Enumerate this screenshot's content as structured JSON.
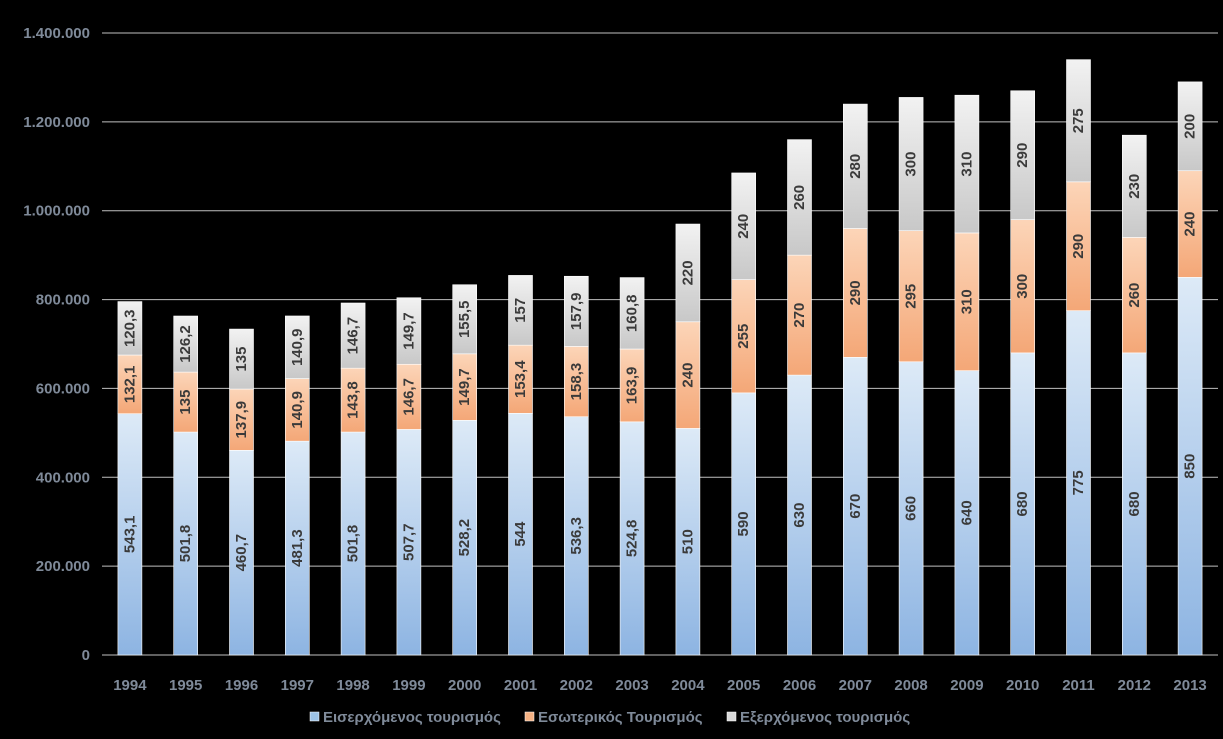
{
  "chart_data": {
    "type": "bar",
    "stacked": true,
    "categories": [
      "1994",
      "1995",
      "1996",
      "1997",
      "1998",
      "1999",
      "2000",
      "2001",
      "2002",
      "2003",
      "2004",
      "2005",
      "2006",
      "2007",
      "2008",
      "2009",
      "2010",
      "2011",
      "2012",
      "2013"
    ],
    "ylim": [
      0,
      1400000
    ],
    "yticks": [
      0,
      200000,
      400000,
      600000,
      800000,
      1000000,
      1200000,
      1400000
    ],
    "ytick_labels": [
      "0",
      "200.000",
      "400.000",
      "600.000",
      "800.000",
      "1.000.000",
      "1.200.000",
      "1.400.000"
    ],
    "grid": true,
    "legend_position": "bottom",
    "value_scale": 1000,
    "series": [
      {
        "name": "Εισερχόμενος τουρισμός",
        "color": "#9dc3e6",
        "values": [
          543.1,
          501.8,
          460.7,
          481.3,
          501.8,
          507.7,
          528.2,
          544,
          536.3,
          524.8,
          510,
          590,
          630,
          670,
          660,
          640,
          680,
          775,
          680,
          850
        ],
        "labels": [
          "543,1",
          "501,8",
          "460,7",
          "481,3",
          "501,8",
          "507,7",
          "528,2",
          "544",
          "536,3",
          "524,8",
          "510",
          "590",
          "630",
          "670",
          "660",
          "640",
          "680",
          "775",
          "680",
          "850"
        ]
      },
      {
        "name": "Εσωτερικός Τουρισμός",
        "color": "#f4b183",
        "values": [
          132.1,
          135,
          137.9,
          140.9,
          143.8,
          146.7,
          149.7,
          153.4,
          158.3,
          163.9,
          240,
          255,
          270,
          290,
          295,
          310,
          300,
          290,
          260,
          240
        ],
        "labels": [
          "132,1",
          "135",
          "137,9",
          "140,9",
          "143,8",
          "146,7",
          "149,7",
          "153,4",
          "158,3",
          "163,9",
          "240",
          "255",
          "270",
          "290",
          "295",
          "310",
          "300",
          "290",
          "260",
          "240"
        ]
      },
      {
        "name": "Εξερχόμενος τουρισμός",
        "color": "#d9d9d9",
        "values": [
          120.3,
          126.2,
          135,
          140.9,
          146.7,
          149.7,
          155.5,
          157,
          157.9,
          160.8,
          220,
          240,
          260,
          280,
          300,
          310,
          290,
          275,
          230,
          200
        ],
        "labels": [
          "120,3",
          "126,2",
          "135",
          "140,9",
          "146,7",
          "149,7",
          "155,5",
          "157",
          "157,9",
          "160,8",
          "220",
          "240",
          "260",
          "280",
          "300",
          "310",
          "290",
          "275",
          "230",
          "200"
        ]
      }
    ]
  }
}
